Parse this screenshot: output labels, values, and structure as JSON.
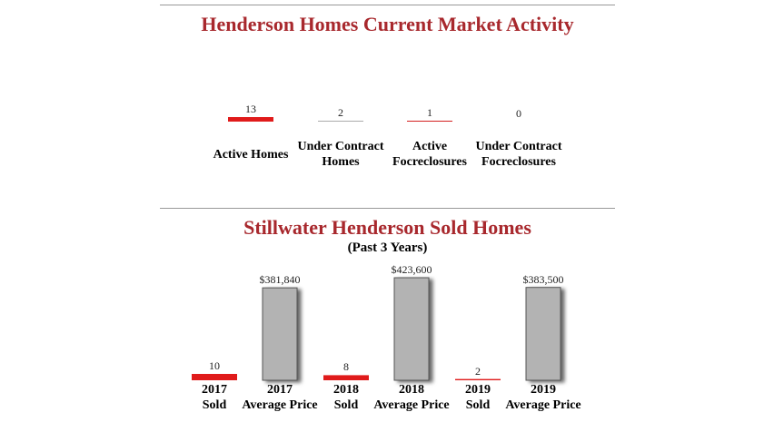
{
  "chart_data": [
    {
      "type": "bar",
      "title": "Henderson Homes Current Market Activity",
      "categories": [
        "Active Homes",
        "Under Contract Homes",
        "Active Focreclosures",
        "Under Contract Focreclosures"
      ],
      "values": [
        13,
        2,
        1,
        0
      ],
      "colors": [
        "#e01b1b",
        "#aaaaaa",
        "#d42020",
        "#aaaaaa"
      ]
    },
    {
      "type": "paired-bar",
      "title": "Stillwater Henderson Sold Homes",
      "subtitle": "(Past 3 Years)",
      "categories": [
        "2017",
        "2018",
        "2019"
      ],
      "series": [
        {
          "name": "Sold",
          "color": "#e01b1b",
          "values": [
            10,
            8,
            2
          ]
        },
        {
          "name": "Average Price",
          "color": "#b3b3b3",
          "values": [
            381840,
            423600,
            383500
          ],
          "value_labels": [
            "$381,840",
            "$423,600",
            "$383,500"
          ]
        }
      ]
    }
  ]
}
